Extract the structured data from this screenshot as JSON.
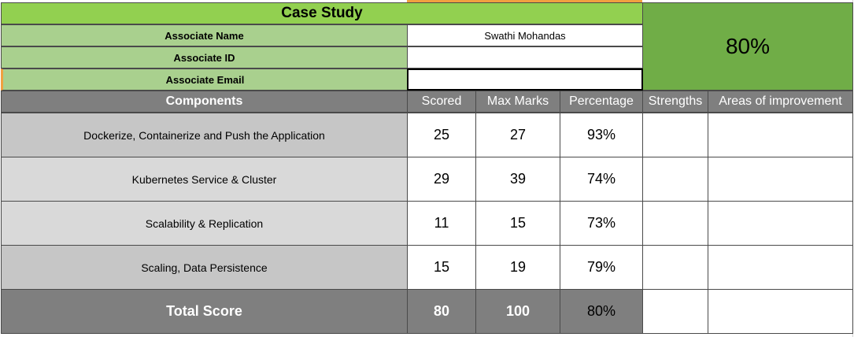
{
  "sheet": {
    "title": "Case Study",
    "overall_percentage": "80%",
    "info": [
      {
        "label": "Associate Name",
        "value": "Swathi Mohandas"
      },
      {
        "label": "Associate ID",
        "value": ""
      },
      {
        "label": "Associate Email",
        "value": ""
      }
    ],
    "headers": {
      "components": "Components",
      "scored": "Scored",
      "max_marks": "Max Marks",
      "percentage": "Percentage",
      "strengths": "Strengths",
      "areas": "Areas of improvement"
    },
    "rows": [
      {
        "component": "Dockerize, Containerize and Push the Application",
        "scored": "25",
        "max": "27",
        "pct": "93%"
      },
      {
        "component": "Kubernetes Service & Cluster",
        "scored": "29",
        "max": "39",
        "pct": "74%"
      },
      {
        "component": "Scalability & Replication",
        "scored": "11",
        "max": "15",
        "pct": "73%"
      },
      {
        "component": "Scaling, Data Persistence",
        "scored": "15",
        "max": "19",
        "pct": "79%"
      }
    ],
    "total": {
      "label": "Total Score",
      "scored": "80",
      "max": "100",
      "pct": "80%"
    }
  },
  "colors": {
    "title_green": "#92d050",
    "label_green": "#a9d08e",
    "score_green": "#70ad47",
    "header_gray": "#7f7f7f"
  }
}
